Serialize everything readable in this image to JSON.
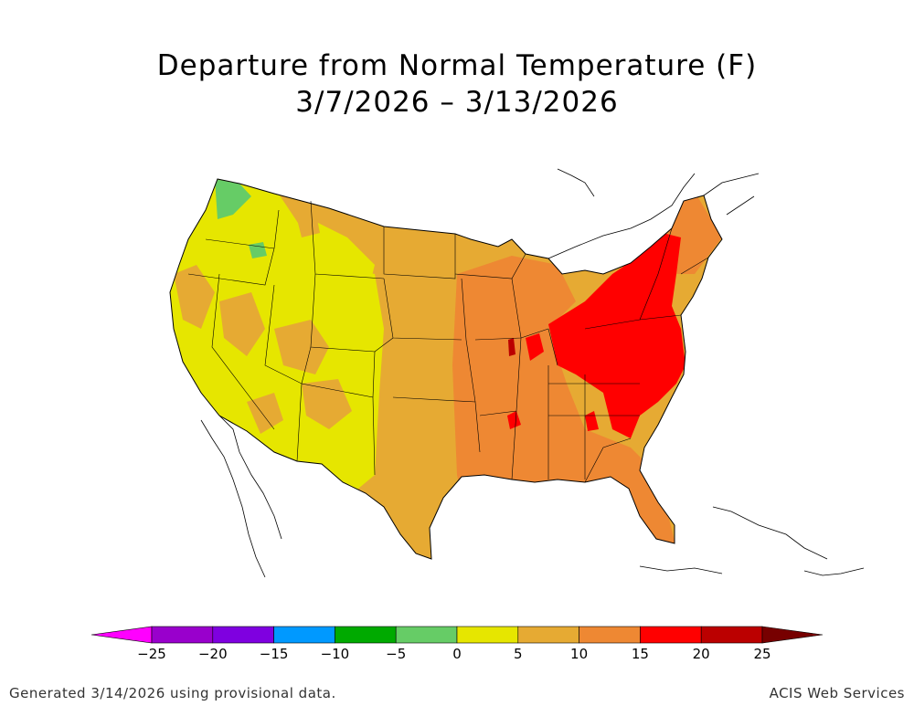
{
  "title": {
    "line1": "Departure from Normal Temperature (F)",
    "line2": "3/7/2026 – 3/13/2026"
  },
  "legend": {
    "bins": [
      {
        "from": -30,
        "to": -25,
        "color": "#ff00ff"
      },
      {
        "from": -25,
        "to": -20,
        "color": "#9900cc"
      },
      {
        "from": -20,
        "to": -15,
        "color": "#7f00e0"
      },
      {
        "from": -15,
        "to": -10,
        "color": "#0099ff"
      },
      {
        "from": -10,
        "to": -5,
        "color": "#00aa00"
      },
      {
        "from": -5,
        "to": 0,
        "color": "#66cc66"
      },
      {
        "from": 0,
        "to": 5,
        "color": "#e6e600"
      },
      {
        "from": 5,
        "to": 10,
        "color": "#e6aa33"
      },
      {
        "from": 10,
        "to": 15,
        "color": "#ee8833"
      },
      {
        "from": 15,
        "to": 20,
        "color": "#ff0000"
      },
      {
        "from": 20,
        "to": 25,
        "color": "#bb0000"
      },
      {
        "from": 25,
        "to": 30,
        "color": "#770000"
      }
    ],
    "ticks": [
      "−25",
      "−20",
      "−15",
      "−10",
      "−5",
      "0",
      "5",
      "10",
      "15",
      "20",
      "25"
    ]
  },
  "footer": {
    "left": "Generated 3/14/2026 using provisional data.",
    "right": "ACIS Web Services"
  }
}
